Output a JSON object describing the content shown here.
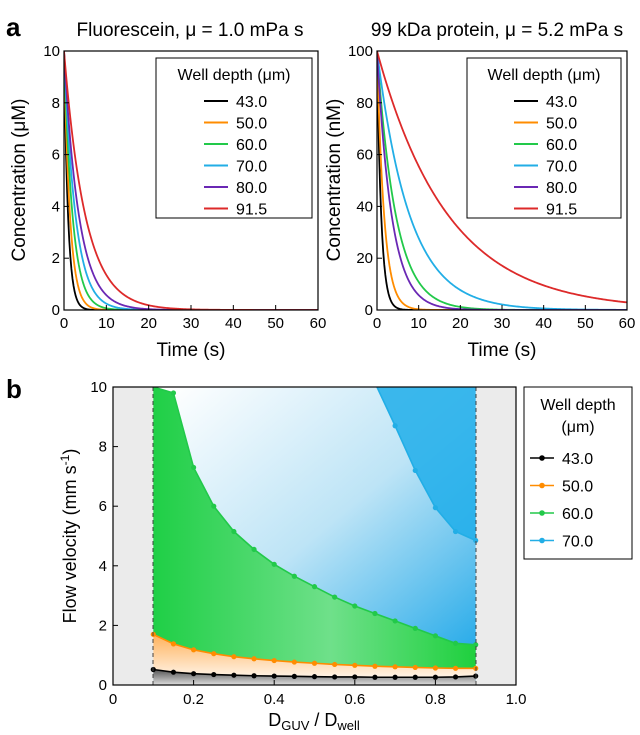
{
  "panel_labels": {
    "a": "a",
    "b": "b"
  },
  "legend_colors": {
    "43.0": "#000000",
    "50.0": "#ff8c00",
    "60.0": "#22c94a",
    "70.0": "#22aee6",
    "80.0": "#6a28b4",
    "91.5": "#dd2a2a"
  },
  "chart_data": [
    {
      "id": "a-left",
      "type": "line",
      "title": "Fluorescein, μ = 1.0 mPa s",
      "xlabel": "Time (s)",
      "ylabel": "Concentration (μM)",
      "xlim": [
        0,
        60
      ],
      "ylim": [
        0,
        10
      ],
      "xticks": [
        0,
        10,
        20,
        30,
        40,
        50,
        60
      ],
      "yticks": [
        0,
        2,
        4,
        6,
        8,
        10
      ],
      "legend_title": "Well depth (μm)",
      "legend_position": "top-right",
      "grid": false,
      "model": "exponential decay c(t) = 10·exp(-t/tau)",
      "series": [
        {
          "name": "43.0",
          "color": "#000000",
          "tau": 0.95
        },
        {
          "name": "50.0",
          "color": "#ff8c00",
          "tau": 1.4
        },
        {
          "name": "60.0",
          "color": "#22c94a",
          "tau": 2.0
        },
        {
          "name": "70.0",
          "color": "#22aee6",
          "tau": 2.7
        },
        {
          "name": "80.0",
          "color": "#6a28b4",
          "tau": 3.5
        },
        {
          "name": "91.5",
          "color": "#dd2a2a",
          "tau": 5.0
        }
      ]
    },
    {
      "id": "a-right",
      "type": "line",
      "title": "99 kDa protein, μ = 5.2 mPa s",
      "xlabel": "Time (s)",
      "ylabel": "Concentration (nM)",
      "xlim": [
        0,
        60
      ],
      "ylim": [
        0,
        100
      ],
      "xticks": [
        0,
        10,
        20,
        30,
        40,
        50,
        60
      ],
      "yticks": [
        0,
        20,
        40,
        60,
        80,
        100
      ],
      "legend_title": "Well depth (μm)",
      "legend_position": "top-right",
      "grid": false,
      "model": "exponential decay c(t) = 100·exp(-t/tau)",
      "series": [
        {
          "name": "43.0",
          "color": "#000000",
          "tau": 1.0
        },
        {
          "name": "50.0",
          "color": "#ff8c00",
          "tau": 1.7
        },
        {
          "name": "60.0",
          "color": "#22c94a",
          "tau": 4.5
        },
        {
          "name": "70.0",
          "color": "#22aee6",
          "tau": 7.8
        },
        {
          "name": "80.0",
          "color": "#6a28b4",
          "tau": 3.5
        },
        {
          "name": "91.5",
          "color": "#dd2a2a",
          "tau": 17.0
        }
      ]
    },
    {
      "id": "b",
      "type": "scatter",
      "xlabel_main": "D",
      "xlabel_sub1": "GUV",
      "xlabel_mid": " / D",
      "xlabel_sub2": "well",
      "ylabel": "Flow velocity (mm s",
      "ylabel_sup": "-1",
      "ylabel_end": ")",
      "xlim": [
        0,
        1.0
      ],
      "ylim": [
        0,
        10
      ],
      "xticks": [
        "0",
        "0.2",
        "0.4",
        "0.6",
        "0.8",
        "1.0"
      ],
      "yticks": [
        0,
        2,
        4,
        6,
        8,
        10
      ],
      "shaded_excluded_ranges": [
        [
          0,
          0.1
        ],
        [
          0.9,
          1.0
        ]
      ],
      "dashed_lines_x": [
        0.1,
        0.9
      ],
      "legend_title_line1": "Well depth",
      "legend_title_line2": "(μm)",
      "legend_position": "right",
      "x": [
        0.1,
        0.15,
        0.2,
        0.25,
        0.3,
        0.35,
        0.4,
        0.45,
        0.5,
        0.55,
        0.6,
        0.65,
        0.7,
        0.75,
        0.8,
        0.85,
        0.9
      ],
      "series": [
        {
          "name": "43.0",
          "color": "#000000",
          "y": [
            0.52,
            0.43,
            0.38,
            0.35,
            0.33,
            0.31,
            0.3,
            0.29,
            0.28,
            0.27,
            0.27,
            0.26,
            0.26,
            0.26,
            0.26,
            0.27,
            0.3
          ]
        },
        {
          "name": "50.0",
          "color": "#ff8c00",
          "y": [
            1.7,
            1.38,
            1.18,
            1.05,
            0.95,
            0.88,
            0.82,
            0.77,
            0.73,
            0.69,
            0.66,
            0.63,
            0.61,
            0.59,
            0.57,
            0.56,
            0.56
          ]
        },
        {
          "name": "60.0",
          "color": "#22c94a",
          "y": [
            null,
            9.8,
            7.3,
            6.0,
            5.15,
            4.55,
            4.05,
            3.65,
            3.3,
            2.95,
            2.65,
            2.4,
            2.15,
            1.9,
            1.65,
            1.4,
            1.35
          ]
        },
        {
          "name": "70.0",
          "color": "#22aee6",
          "y": [
            null,
            null,
            null,
            null,
            null,
            null,
            null,
            null,
            null,
            null,
            null,
            null,
            8.7,
            7.2,
            5.95,
            5.15,
            4.85
          ]
        }
      ]
    }
  ]
}
